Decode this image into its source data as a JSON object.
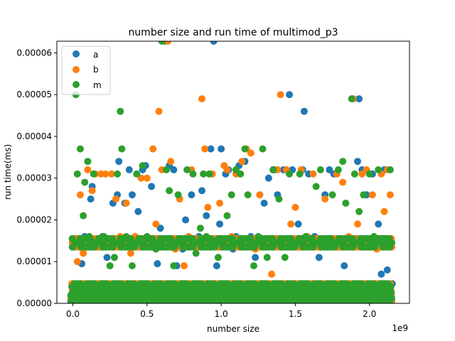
{
  "chart_data": {
    "type": "scatter",
    "title": "number size and run time of multimod_p3",
    "xlabel": "number size",
    "ylabel": "run time(ms)",
    "x_offset_label": "1e9",
    "xlim": [
      -0.108,
      2.27
    ],
    "ylim": [
      0,
      6.28e-05
    ],
    "x_ticks": [
      0.0,
      0.5,
      1.0,
      1.5,
      2.0
    ],
    "x_tick_labels": [
      "0.0",
      "0.5",
      "1.0",
      "1.5",
      "2.0"
    ],
    "y_ticks": [
      0,
      1e-05,
      2e-05,
      3e-05,
      4e-05,
      5e-05,
      6e-05
    ],
    "y_tick_labels": [
      "0.00000",
      "0.00001",
      "0.00002",
      "0.00003",
      "0.00004",
      "0.00005",
      "0.00006"
    ],
    "legend_position": "top-left",
    "grid": false,
    "series": [
      {
        "name": "a",
        "color": "#1f77b4",
        "points": [
          [
            0.02,
            1.5e-05
          ],
          [
            0.04,
            3e-06
          ],
          [
            0.06,
            9.5e-06
          ],
          [
            0.08,
            1.6e-05
          ],
          [
            0.12,
            2.5e-05
          ],
          [
            0.13,
            2.8e-05
          ],
          [
            0.16,
            3e-06
          ],
          [
            0.2,
            1.6e-05
          ],
          [
            0.23,
            1.1e-05
          ],
          [
            0.27,
            2.4e-05
          ],
          [
            0.3,
            2.6e-05
          ],
          [
            0.31,
            3.4e-05
          ],
          [
            0.35,
            2.4e-05
          ],
          [
            0.38,
            3.2e-05
          ],
          [
            0.4,
            2.6e-05
          ],
          [
            0.44,
            2.2e-05
          ],
          [
            0.47,
            3.2e-05
          ],
          [
            0.49,
            3.3e-05
          ],
          [
            0.53,
            2.8e-05
          ],
          [
            0.57,
            9.5e-06
          ],
          [
            0.59,
            1.8e-05
          ],
          [
            0.62,
            6.28e-05
          ],
          [
            0.65,
            3.3e-05
          ],
          [
            0.68,
            3.2e-05
          ],
          [
            0.7,
            9e-06
          ],
          [
            0.74,
            1.3e-05
          ],
          [
            0.76,
            2e-05
          ],
          [
            0.8,
            2.6e-05
          ],
          [
            0.85,
            1.6e-05
          ],
          [
            0.87,
            2.7e-05
          ],
          [
            0.9,
            2.1e-05
          ],
          [
            0.93,
            3.7e-05
          ],
          [
            0.95,
            6.28e-05
          ],
          [
            0.97,
            9e-06
          ],
          [
            0.99,
            1.9e-05
          ],
          [
            1.0,
            3.7e-05
          ],
          [
            1.03,
            3.1e-05
          ],
          [
            1.05,
            3.2e-05
          ],
          [
            1.08,
            1.3e-05
          ],
          [
            1.1,
            1.6e-05
          ],
          [
            1.12,
            3.3e-05
          ],
          [
            1.16,
            3.4e-05
          ],
          [
            1.2,
            1.6e-05
          ],
          [
            1.23,
            1.1e-05
          ],
          [
            1.26,
            2.6e-05
          ],
          [
            1.29,
            2.4e-05
          ],
          [
            1.32,
            3e-05
          ],
          [
            1.36,
            3.2e-05
          ],
          [
            1.38,
            2.6e-05
          ],
          [
            1.42,
            3.2e-05
          ],
          [
            1.46,
            5e-05
          ],
          [
            1.48,
            3.2e-05
          ],
          [
            1.52,
            1.9e-05
          ],
          [
            1.55,
            3.2e-05
          ],
          [
            1.56,
            4.6e-05
          ],
          [
            1.59,
            3.1e-05
          ],
          [
            1.63,
            1.6e-05
          ],
          [
            1.66,
            1.1e-05
          ],
          [
            1.7,
            2.6e-05
          ],
          [
            1.73,
            3.2e-05
          ],
          [
            1.76,
            3.1e-05
          ],
          [
            1.8,
            1.5e-05
          ],
          [
            1.83,
            9e-06
          ],
          [
            1.87,
            1.5e-05
          ],
          [
            1.9,
            3e-06
          ],
          [
            1.92,
            3.4e-05
          ],
          [
            1.93,
            4.9e-05
          ],
          [
            1.95,
            3.2e-05
          ],
          [
            1.98,
            2.6e-05
          ],
          [
            2.02,
            3.1e-05
          ],
          [
            2.06,
            1.9e-05
          ],
          [
            2.08,
            7e-06
          ],
          [
            2.1,
            3.2e-05
          ],
          [
            2.12,
            8e-06
          ]
        ]
      },
      {
        "name": "b",
        "color": "#ff7f0e",
        "points": [
          [
            0.01,
            1.5e-05
          ],
          [
            0.03,
            1e-05
          ],
          [
            0.05,
            2.6e-05
          ],
          [
            0.07,
            1.2e-05
          ],
          [
            0.1,
            3.2e-05
          ],
          [
            0.13,
            2.7e-05
          ],
          [
            0.15,
            3.1e-05
          ],
          [
            0.19,
            3.1e-05
          ],
          [
            0.22,
            3.1e-05
          ],
          [
            0.26,
            3.1e-05
          ],
          [
            0.29,
            2.5e-05
          ],
          [
            0.32,
            1.6e-05
          ],
          [
            0.36,
            2.4e-05
          ],
          [
            0.39,
            1.2e-05
          ],
          [
            0.42,
            1.6e-05
          ],
          [
            0.46,
            3e-05
          ],
          [
            0.5,
            3e-05
          ],
          [
            0.54,
            3.7e-05
          ],
          [
            0.56,
            1.9e-05
          ],
          [
            0.58,
            4.6e-05
          ],
          [
            0.6,
            3.2e-05
          ],
          [
            0.62,
            4e-06
          ],
          [
            0.64,
            6.28e-05
          ],
          [
            0.66,
            3.4e-05
          ],
          [
            0.69,
            1.3e-05
          ],
          [
            0.72,
            2.5e-05
          ],
          [
            0.75,
            9e-06
          ],
          [
            0.78,
            1.6e-05
          ],
          [
            0.8,
            3.2e-05
          ],
          [
            0.84,
            1.5e-05
          ],
          [
            0.87,
            4.9e-05
          ],
          [
            0.89,
            3.7e-05
          ],
          [
            0.91,
            2.3e-05
          ],
          [
            0.94,
            3.1e-05
          ],
          [
            0.96,
            1.5e-05
          ],
          [
            0.99,
            2.4e-05
          ],
          [
            1.02,
            3.3e-05
          ],
          [
            1.04,
            3.2e-05
          ],
          [
            1.07,
            1.6e-05
          ],
          [
            1.1,
            3.1e-05
          ],
          [
            1.14,
            3.4e-05
          ],
          [
            1.17,
            3.7e-05
          ],
          [
            1.2,
            3.6e-05
          ],
          [
            1.23,
            1.3e-05
          ],
          [
            1.26,
            2.6e-05
          ],
          [
            1.3,
            1.4e-05
          ],
          [
            1.34,
            7e-06
          ],
          [
            1.38,
            3.2e-05
          ],
          [
            1.4,
            5e-05
          ],
          [
            1.44,
            3.2e-05
          ],
          [
            1.47,
            1.9e-05
          ],
          [
            1.5,
            2.3e-05
          ],
          [
            1.54,
            3.2e-05
          ],
          [
            1.58,
            1.6e-05
          ],
          [
            1.62,
            3.1e-05
          ],
          [
            1.66,
            1.5e-05
          ],
          [
            1.7,
            2.5e-05
          ],
          [
            1.74,
            1.4e-05
          ],
          [
            1.78,
            3.1e-05
          ],
          [
            1.82,
            2.9e-05
          ],
          [
            1.86,
            1.6e-05
          ],
          [
            1.89,
            4.9e-05
          ],
          [
            1.92,
            1.9e-05
          ],
          [
            1.95,
            3.1e-05
          ],
          [
            1.98,
            3.2e-05
          ],
          [
            2.02,
            2.6e-05
          ],
          [
            2.05,
            1.3e-05
          ],
          [
            2.08,
            3.1e-05
          ],
          [
            2.1,
            2.2e-05
          ],
          [
            2.12,
            3.2e-05
          ],
          [
            2.14,
            2.6e-05
          ]
        ]
      },
      {
        "name": "m",
        "color": "#2ca02c",
        "points": [
          [
            0.02,
            5e-05
          ],
          [
            0.03,
            3.1e-05
          ],
          [
            0.05,
            3.7e-05
          ],
          [
            0.07,
            2.1e-05
          ],
          [
            0.08,
            2.9e-05
          ],
          [
            0.1,
            3.4e-05
          ],
          [
            0.11,
            1.6e-05
          ],
          [
            0.14,
            3.1e-05
          ],
          [
            0.17,
            1.5e-05
          ],
          [
            0.21,
            1.6e-05
          ],
          [
            0.25,
            9e-06
          ],
          [
            0.28,
            1.1e-05
          ],
          [
            0.3,
            3.1e-05
          ],
          [
            0.32,
            4.6e-05
          ],
          [
            0.33,
            3.7e-05
          ],
          [
            0.36,
            1.6e-05
          ],
          [
            0.4,
            9e-06
          ],
          [
            0.43,
            3.1e-05
          ],
          [
            0.47,
            3.3e-05
          ],
          [
            0.5,
            1.6e-05
          ],
          [
            0.53,
            1.5e-05
          ],
          [
            0.56,
            1.3e-05
          ],
          [
            0.6,
            6.28e-05
          ],
          [
            0.63,
            3.2e-05
          ],
          [
            0.65,
            2.7e-05
          ],
          [
            0.68,
            9e-06
          ],
          [
            0.71,
            2.6e-05
          ],
          [
            0.74,
            1.5e-05
          ],
          [
            0.77,
            3.2e-05
          ],
          [
            0.81,
            3.1e-05
          ],
          [
            0.83,
            1.2e-05
          ],
          [
            0.86,
            1.8e-05
          ],
          [
            0.88,
            3.1e-05
          ],
          [
            0.9,
            1.6e-05
          ],
          [
            0.92,
            3.1e-05
          ],
          [
            0.95,
            1.5e-05
          ],
          [
            0.98,
            1.1e-05
          ],
          [
            1.01,
            1.5e-05
          ],
          [
            1.04,
            2.1e-05
          ],
          [
            1.07,
            2.6e-05
          ],
          [
            1.1,
            3.2e-05
          ],
          [
            1.13,
            3.1e-05
          ],
          [
            1.16,
            3.7e-05
          ],
          [
            1.18,
            2.6e-05
          ],
          [
            1.22,
            9e-06
          ],
          [
            1.25,
            1.6e-05
          ],
          [
            1.28,
            3.7e-05
          ],
          [
            1.31,
            1.1e-05
          ],
          [
            1.35,
            3.2e-05
          ],
          [
            1.39,
            2.5e-05
          ],
          [
            1.43,
            1.1e-05
          ],
          [
            1.46,
            3.1e-05
          ],
          [
            1.49,
            1.4e-05
          ],
          [
            1.53,
            3.1e-05
          ],
          [
            1.57,
            1.6e-05
          ],
          [
            1.61,
            1.5e-05
          ],
          [
            1.64,
            2.8e-05
          ],
          [
            1.67,
            3.2e-05
          ],
          [
            1.71,
            1.5e-05
          ],
          [
            1.75,
            2.6e-05
          ],
          [
            1.79,
            3.2e-05
          ],
          [
            1.82,
            3.4e-05
          ],
          [
            1.84,
            2.4e-05
          ],
          [
            1.88,
            4.9e-05
          ],
          [
            1.9,
            3.1e-05
          ],
          [
            1.93,
            2.2e-05
          ],
          [
            1.96,
            2.6e-05
          ],
          [
            2.0,
            3.1e-05
          ],
          [
            2.03,
            1.6e-05
          ],
          [
            2.06,
            3.2e-05
          ],
          [
            2.09,
            1.5e-05
          ],
          [
            2.12,
            1.5e-05
          ],
          [
            2.14,
            3.2e-05
          ]
        ]
      }
    ],
    "baseline_band": {
      "y_values": [
        5e-07,
        1.2e-06,
        1.9e-06,
        2.6e-06,
        3.3e-06,
        4e-06,
        4.7e-06
      ],
      "x_start": 0.0,
      "x_end": 2.14,
      "x_step": 0.02
    },
    "cluster_band": {
      "y_values": [
        1.35e-05,
        1.45e-05,
        1.55e-05
      ],
      "x_start": 0.01,
      "x_end": 2.14,
      "x_step": 0.03
    }
  }
}
